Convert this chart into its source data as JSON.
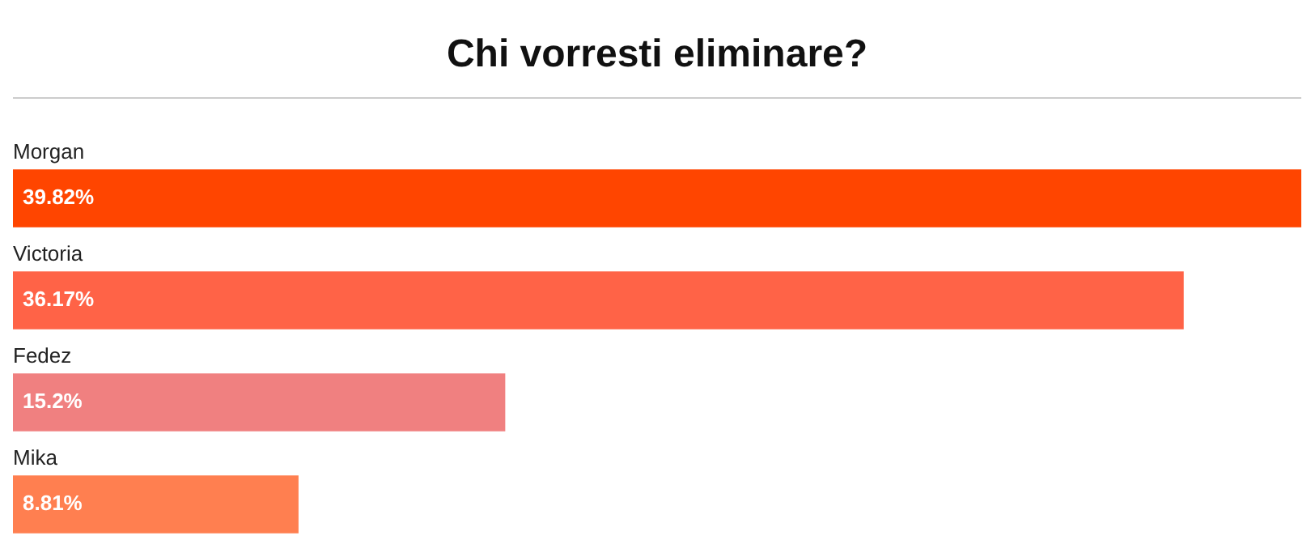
{
  "chart_data": {
    "type": "bar",
    "orientation": "horizontal",
    "title": "Chi vorresti eliminare?",
    "categories": [
      "Morgan",
      "Victoria",
      "Fedez",
      "Mika"
    ],
    "values": [
      39.82,
      36.17,
      15.2,
      8.81
    ],
    "colors": [
      "#ff4500",
      "#ff6347",
      "#f08080",
      "#ff7f50"
    ],
    "value_labels": [
      "39.82%",
      "36.17%",
      "15.2%",
      "8.81%"
    ]
  }
}
